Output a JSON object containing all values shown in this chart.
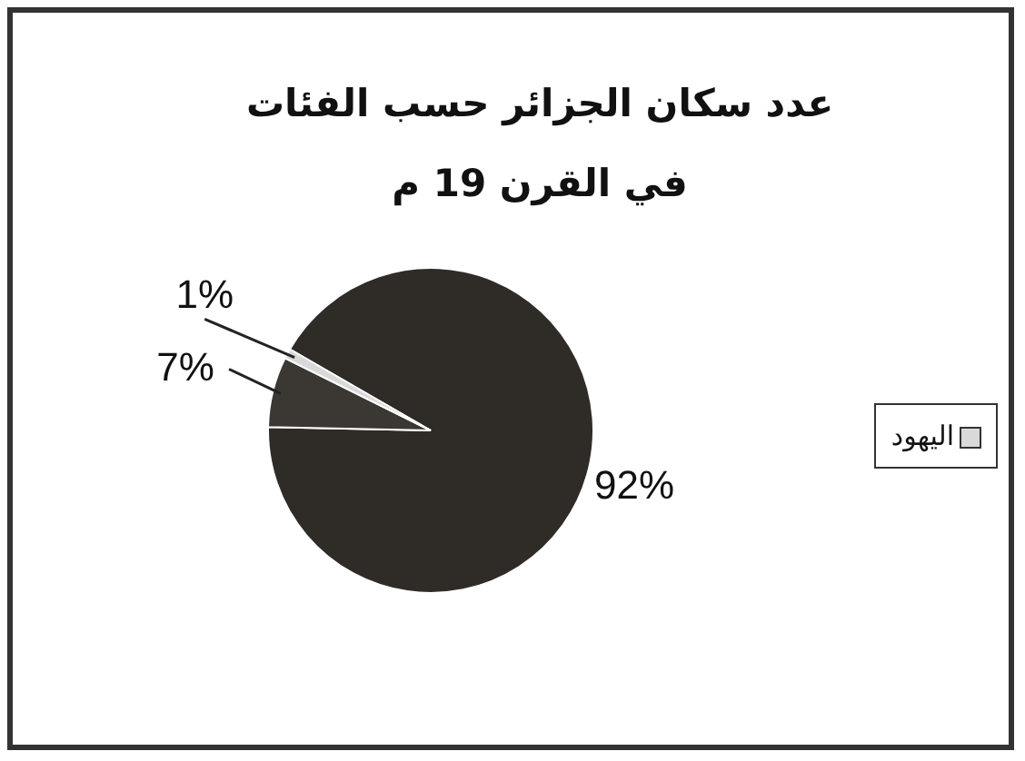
{
  "chart_data": {
    "type": "pie",
    "title": "عدد سكان الجزائر حسب الفئات في القرن 19 م",
    "categories": [
      null,
      null,
      "اليهود"
    ],
    "values": [
      92,
      7,
      1
    ],
    "colors": [
      "#2f2b27",
      "#3b3732",
      "#d9d9d9"
    ],
    "value_labels": [
      "92%",
      "7%",
      "1%"
    ],
    "legend": "right"
  }
}
